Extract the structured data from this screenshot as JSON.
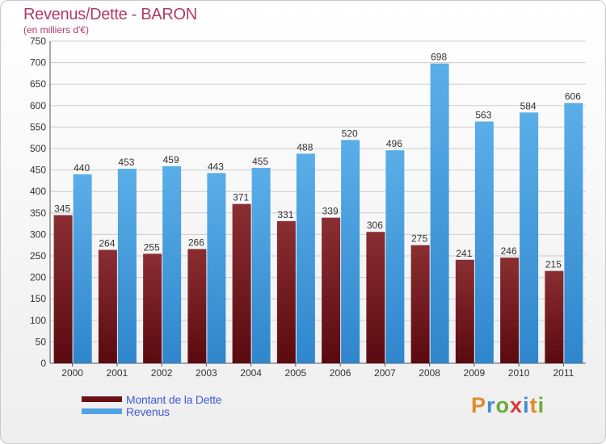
{
  "title": "Revenus/Dette - BARON",
  "subtitle": "(en milliers d'€)",
  "logo_text": "Proxiti",
  "colors": {
    "debt_bar": "#7a1f24",
    "revenue_bar": "#4fa3e3",
    "title": "#b03a6a",
    "legend_text": "#3f5bd6",
    "grid": "#cccccc"
  },
  "chart_data": {
    "type": "bar",
    "title": "Revenus/Dette - BARON",
    "ylabel": "(en milliers d'€)",
    "xlabel": "",
    "categories": [
      "2000",
      "2001",
      "2002",
      "2003",
      "2004",
      "2005",
      "2006",
      "2007",
      "2008",
      "2009",
      "2010",
      "2011"
    ],
    "series": [
      {
        "name": "Montant de la Dette",
        "color": "#7a1f24",
        "values": [
          345,
          264,
          255,
          266,
          371,
          331,
          339,
          306,
          275,
          241,
          246,
          215
        ]
      },
      {
        "name": "Revenus",
        "color": "#4fa3e3",
        "values": [
          440,
          453,
          459,
          443,
          455,
          488,
          520,
          496,
          698,
          563,
          584,
          606
        ]
      }
    ],
    "ylim": [
      0,
      750
    ],
    "yticks": [
      0,
      50,
      100,
      150,
      200,
      250,
      300,
      350,
      400,
      450,
      500,
      550,
      600,
      650,
      700,
      750
    ],
    "grid": true,
    "legend_position": "bottom-left"
  }
}
